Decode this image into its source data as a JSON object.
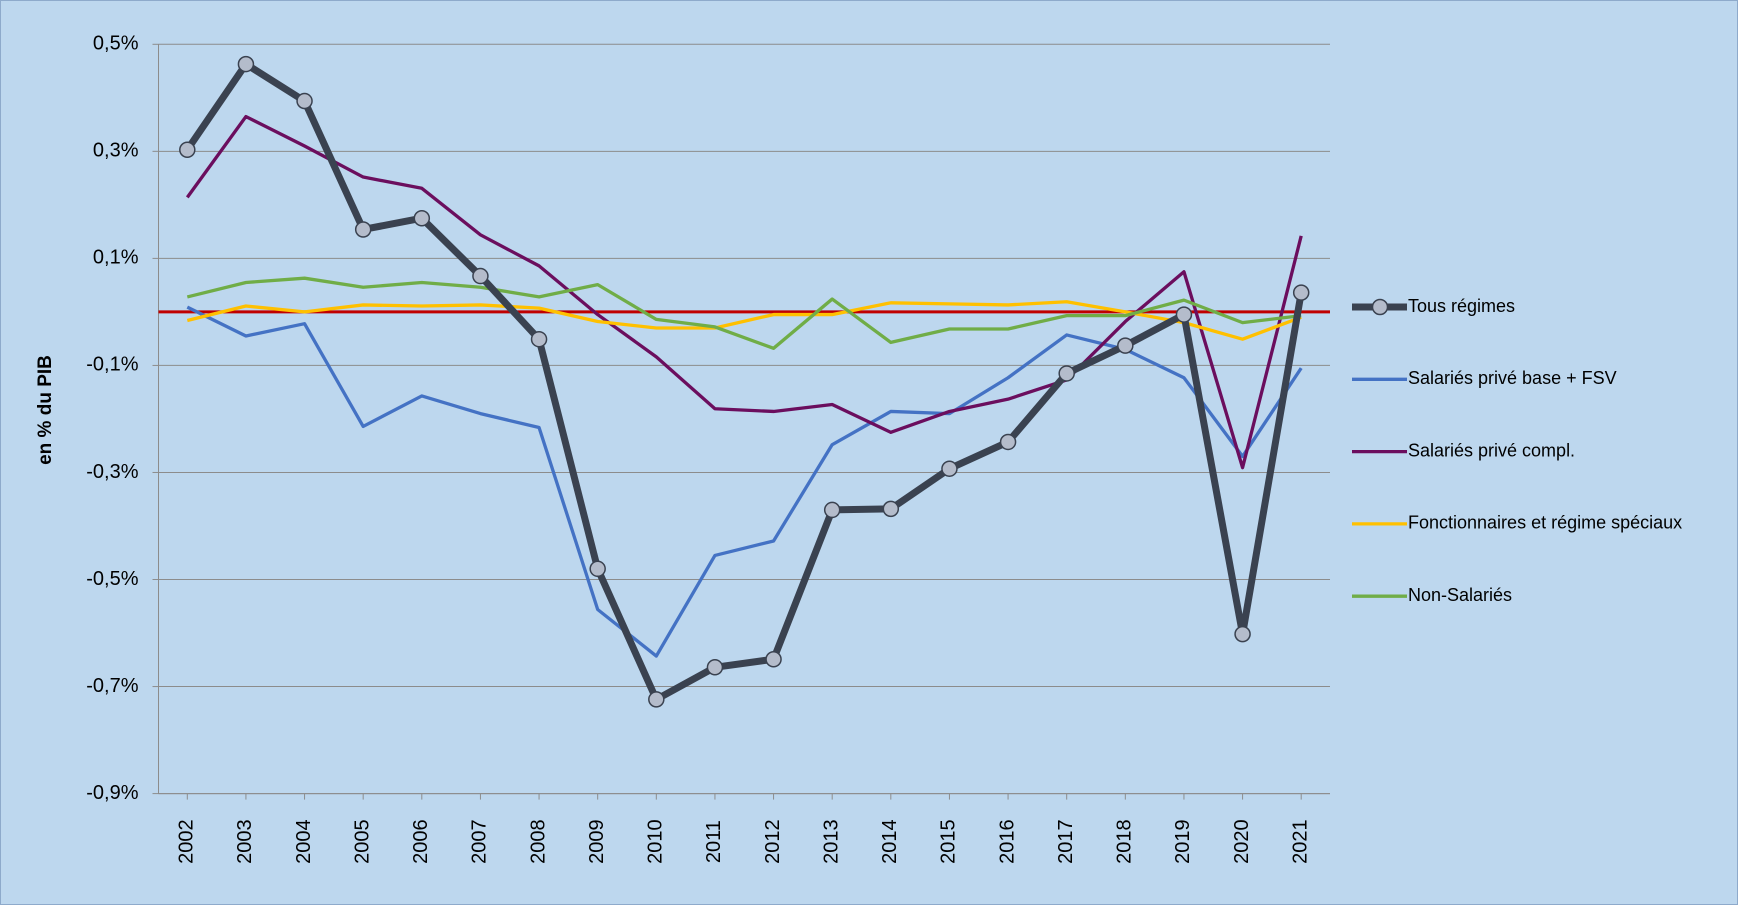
{
  "chart_data": {
    "type": "line",
    "y_axis_label": "en % du PIB",
    "categories": [
      "2002",
      "2003",
      "2004",
      "2005",
      "2006",
      "2007",
      "2008",
      "2009",
      "2010",
      "2011",
      "2012",
      "2013",
      "2014",
      "2015",
      "2016",
      "2017",
      "2018",
      "2019",
      "2020",
      "2021"
    ],
    "ylim": [
      -0.9,
      0.5
    ],
    "yticks": [
      {
        "value": -0.9,
        "label": "-0,9%"
      },
      {
        "value": -0.7,
        "label": "-0,7%"
      },
      {
        "value": -0.5,
        "label": "-0,5%"
      },
      {
        "value": -0.3,
        "label": "-0,3%"
      },
      {
        "value": -0.1,
        "label": "-0,1%"
      },
      {
        "value": 0.1,
        "label": "0,1%"
      },
      {
        "value": 0.3,
        "label": "0,3%"
      },
      {
        "value": 0.5,
        "label": "0,5%"
      }
    ],
    "grid": true,
    "reference_line": {
      "value": 0,
      "color": "#c00000"
    },
    "legend_position": "right",
    "series": [
      {
        "name": "Tous régimes",
        "color": "#3a4250",
        "marker": true,
        "marker_color": "#b4bccb",
        "values": [
          0.303,
          0.463,
          0.394,
          0.154,
          0.175,
          0.067,
          -0.051,
          -0.48,
          -0.724,
          -0.664,
          -0.649,
          -0.37,
          -0.368,
          -0.293,
          -0.243,
          -0.115,
          -0.063,
          -0.005,
          -0.602,
          0.036
        ]
      },
      {
        "name": "Salariés  privé base + FSV",
        "color": "#4472c4",
        "values": [
          0.009,
          -0.045,
          -0.022,
          -0.214,
          -0.157,
          -0.19,
          -0.216,
          -0.556,
          -0.643,
          -0.455,
          -0.428,
          -0.248,
          -0.186,
          -0.19,
          -0.123,
          -0.043,
          -0.07,
          -0.123,
          -0.27,
          -0.105
        ]
      },
      {
        "name": "Salariés  privé compl.",
        "color": "#6b0e5e",
        "values": [
          0.214,
          0.365,
          0.31,
          0.252,
          0.231,
          0.144,
          0.086,
          -0.005,
          -0.084,
          -0.181,
          -0.186,
          -0.173,
          -0.225,
          -0.186,
          -0.163,
          -0.127,
          -0.018,
          0.075,
          -0.291,
          0.142
        ]
      },
      {
        "name": "Fonctionnaires et régime spéciaux",
        "color": "#ffc000",
        "values": [
          -0.016,
          0.011,
          0.0,
          0.013,
          0.011,
          0.013,
          0.007,
          -0.018,
          -0.03,
          -0.03,
          -0.005,
          -0.005,
          0.017,
          0.015,
          0.013,
          0.019,
          0.0,
          -0.02,
          -0.051,
          -0.01
        ]
      },
      {
        "name": "Non-Salariés",
        "color": "#70ad47",
        "values": [
          0.028,
          0.055,
          0.063,
          0.046,
          0.055,
          0.046,
          0.028,
          0.051,
          -0.014,
          -0.028,
          -0.068,
          0.024,
          -0.057,
          -0.032,
          -0.032,
          -0.007,
          -0.007,
          0.022,
          -0.02,
          -0.007
        ]
      }
    ]
  }
}
